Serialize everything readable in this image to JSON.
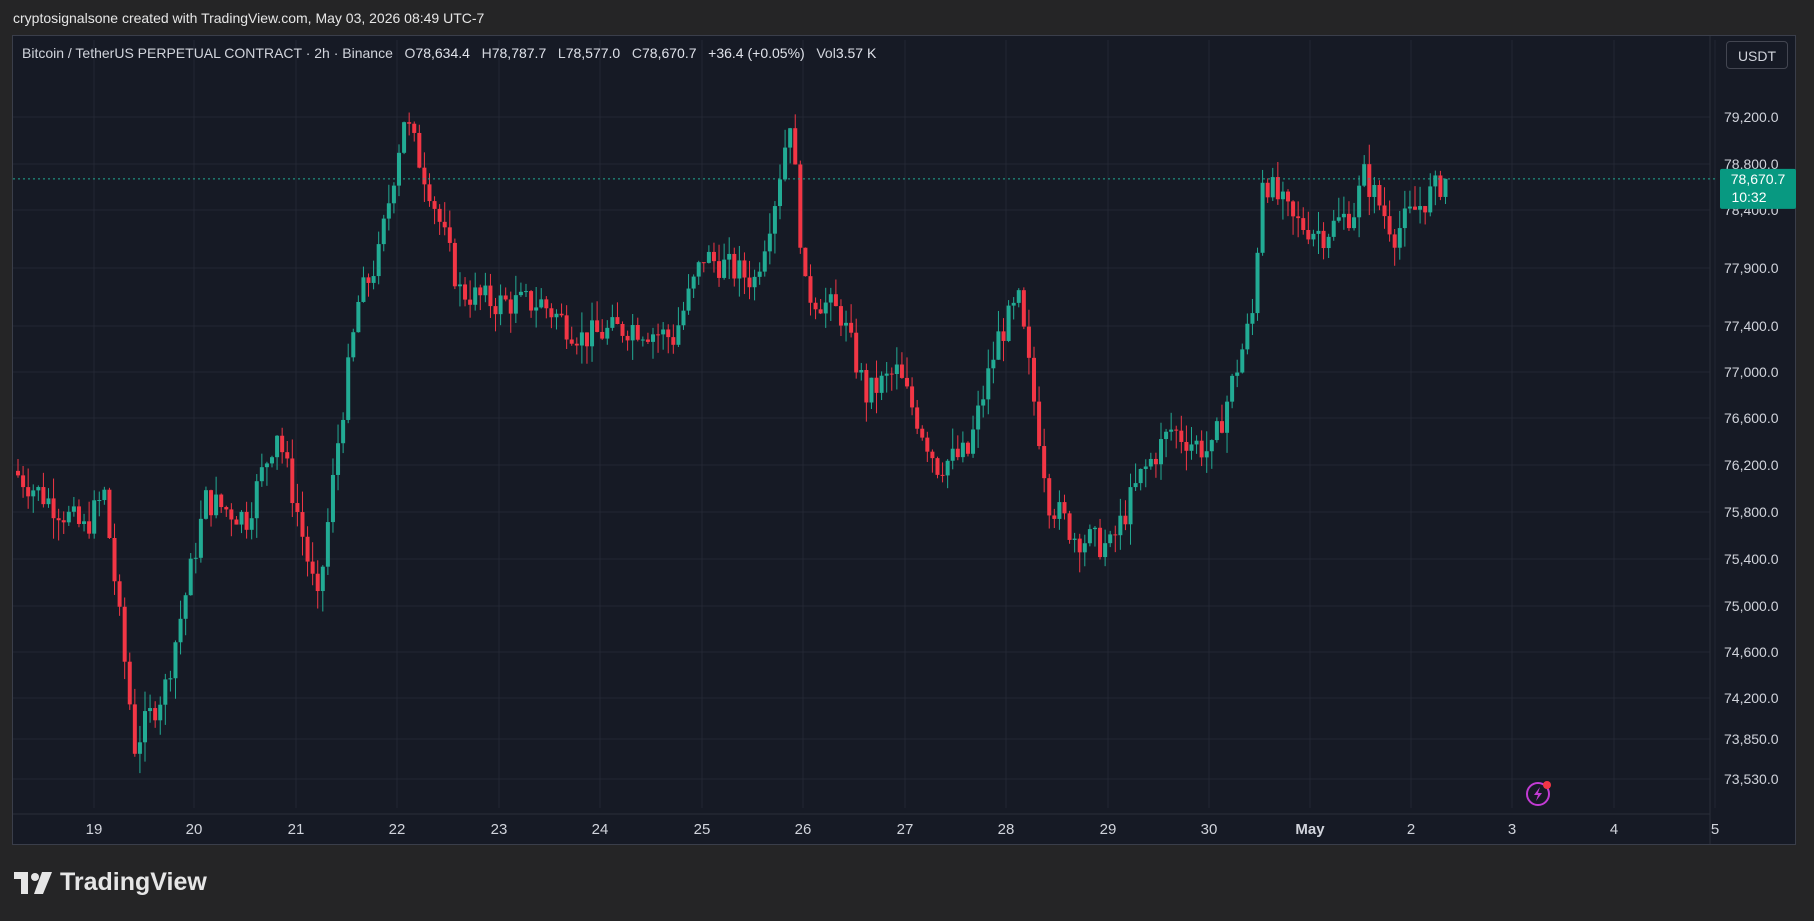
{
  "header": {
    "attribution": "cryptosignalsone created with TradingView.com, May 03, 2026 08:49 UTC-7"
  },
  "legend": {
    "symbol": "Bitcoin / TetherUS PERPETUAL CONTRACT · 2h · Binance",
    "open_label": "O",
    "open": "78,634.4",
    "high_label": "H",
    "high": "78,787.7",
    "low_label": "L",
    "low": "78,577.0",
    "close_label": "C",
    "close": "78,670.7",
    "change": "+36.4 (+0.05%)",
    "volume_label": "Vol",
    "volume": "3.57 K"
  },
  "currency_button": "USDT",
  "price_tag": {
    "price": "78,670.7",
    "countdown": "10:32"
  },
  "brand": {
    "name": "TradingView"
  },
  "colors": {
    "up": "#22ab94",
    "down": "#f23645",
    "background": "#161a25",
    "grid": "#232733"
  },
  "chart_data": {
    "type": "candlestick",
    "interval": "2h",
    "y_axis": {
      "ticks": [
        73530,
        73850,
        74200,
        74600,
        75000,
        75400,
        75800,
        76200,
        76600,
        77000,
        77400,
        77900,
        78400,
        78800,
        79200
      ]
    },
    "y_tick_labels": [
      "73,530.0",
      "73,850.0",
      "74,200.0",
      "74,600.0",
      "75,000.0",
      "75,400.0",
      "75,800.0",
      "76,200.0",
      "76,600.0",
      "77,000.0",
      "77,400.0",
      "77,900.0",
      "78,400.0",
      "78,800.0",
      "79,200.0"
    ],
    "x_tick_labels": [
      "19",
      "20",
      "21",
      "22",
      "23",
      "24",
      "25",
      "26",
      "27",
      "28",
      "29",
      "30",
      "May",
      "2",
      "3",
      "4",
      "5"
    ],
    "last_price": 78670.7,
    "key_points": [
      {
        "t": 0,
        "p": 76150
      },
      {
        "t": 14,
        "p": 75650
      },
      {
        "t": 18,
        "p": 75950
      },
      {
        "t": 24,
        "p": 73800
      },
      {
        "t": 30,
        "p": 74300
      },
      {
        "t": 38,
        "p": 75900
      },
      {
        "t": 46,
        "p": 75750
      },
      {
        "t": 52,
        "p": 76500
      },
      {
        "t": 56,
        "p": 75800
      },
      {
        "t": 60,
        "p": 75000
      },
      {
        "t": 64,
        "p": 76400
      },
      {
        "t": 68,
        "p": 77600
      },
      {
        "t": 72,
        "p": 78000
      },
      {
        "t": 77,
        "p": 79200
      },
      {
        "t": 82,
        "p": 78600
      },
      {
        "t": 88,
        "p": 77700
      },
      {
        "t": 95,
        "p": 77600
      },
      {
        "t": 104,
        "p": 77600
      },
      {
        "t": 112,
        "p": 77300
      },
      {
        "t": 122,
        "p": 77400
      },
      {
        "t": 130,
        "p": 77300
      },
      {
        "t": 136,
        "p": 78000
      },
      {
        "t": 146,
        "p": 77800
      },
      {
        "t": 150,
        "p": 78500
      },
      {
        "t": 153,
        "p": 79200
      },
      {
        "t": 156,
        "p": 77700
      },
      {
        "t": 163,
        "p": 77500
      },
      {
        "t": 168,
        "p": 76800
      },
      {
        "t": 174,
        "p": 77000
      },
      {
        "t": 182,
        "p": 76200
      },
      {
        "t": 188,
        "p": 76300
      },
      {
        "t": 194,
        "p": 77300
      },
      {
        "t": 198,
        "p": 77600
      },
      {
        "t": 204,
        "p": 75900
      },
      {
        "t": 209,
        "p": 75600
      },
      {
        "t": 216,
        "p": 75500
      },
      {
        "t": 222,
        "p": 76100
      },
      {
        "t": 228,
        "p": 76500
      },
      {
        "t": 236,
        "p": 76300
      },
      {
        "t": 244,
        "p": 77500
      },
      {
        "t": 246,
        "p": 78700
      },
      {
        "t": 252,
        "p": 78300
      },
      {
        "t": 258,
        "p": 78200
      },
      {
        "t": 264,
        "p": 78400
      },
      {
        "t": 266,
        "p": 78700
      },
      {
        "t": 272,
        "p": 78200
      },
      {
        "t": 276,
        "p": 78400
      },
      {
        "t": 282,
        "p": 78670
      }
    ]
  }
}
